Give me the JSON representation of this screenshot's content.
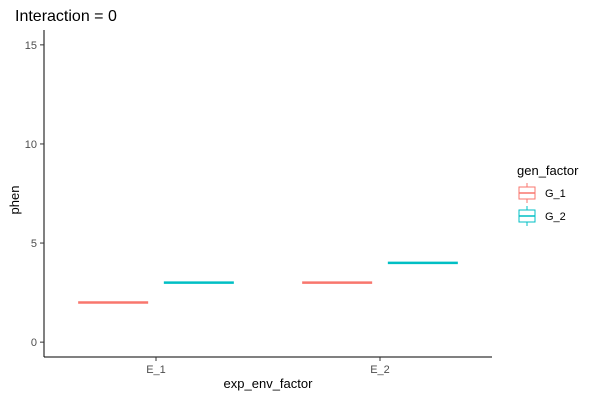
{
  "chart_data": {
    "type": "boxplot",
    "title": "Interaction = 0",
    "xlabel": "exp_env_factor",
    "ylabel": "phen",
    "categories": [
      "E_1",
      "E_2"
    ],
    "ylim": [
      -0.75,
      15.75
    ],
    "yticks": [
      0,
      5,
      10,
      15
    ],
    "grid": false,
    "legend": {
      "title": "gen_factor",
      "placement": "right"
    },
    "series": [
      {
        "name": "G_1",
        "color": "#F8766D",
        "values": [
          2,
          3
        ]
      },
      {
        "name": "G_2",
        "color": "#00BFC4",
        "values": [
          3,
          4
        ]
      }
    ]
  }
}
